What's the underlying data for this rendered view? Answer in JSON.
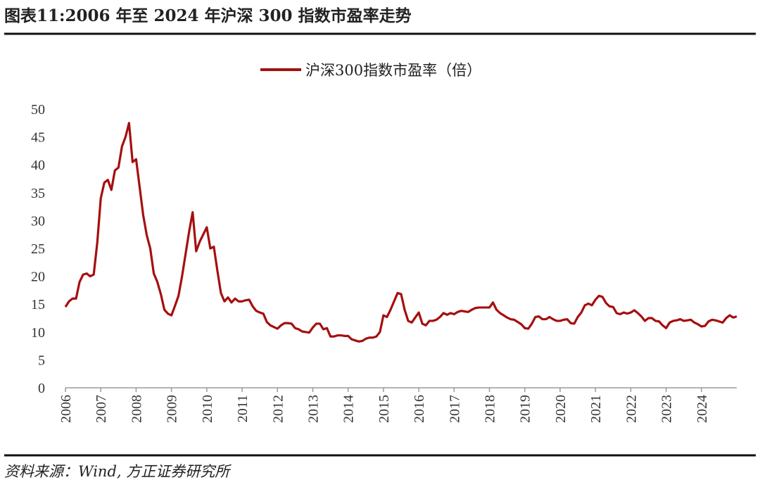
{
  "chart_data": {
    "type": "line",
    "title": "图表11:2006 年至 2024 年沪深 300 指数市盈率走势",
    "source": "资料来源：Wind, 方正证券研究所",
    "x": [
      2006,
      2006.1,
      2006.2,
      2006.3,
      2006.4,
      2006.5,
      2006.6,
      2006.7,
      2006.8,
      2006.9,
      2007,
      2007.1,
      2007.2,
      2007.3,
      2007.4,
      2007.5,
      2007.6,
      2007.7,
      2007.8,
      2007.9,
      2008,
      2008.1,
      2008.2,
      2008.3,
      2008.4,
      2008.5,
      2008.6,
      2008.7,
      2008.8,
      2008.9,
      2009,
      2009.1,
      2009.2,
      2009.3,
      2009.4,
      2009.5,
      2009.6,
      2009.7,
      2009.8,
      2009.9,
      2010,
      2010.1,
      2010.2,
      2010.3,
      2010.4,
      2010.5,
      2010.6,
      2010.7,
      2010.8,
      2010.9,
      2011,
      2011.1,
      2011.2,
      2011.3,
      2011.4,
      2011.5,
      2011.6,
      2011.7,
      2011.8,
      2011.9,
      2012,
      2012.1,
      2012.2,
      2012.3,
      2012.4,
      2012.5,
      2012.6,
      2012.7,
      2012.8,
      2012.9,
      2013,
      2013.1,
      2013.2,
      2013.3,
      2013.4,
      2013.5,
      2013.6,
      2013.7,
      2013.8,
      2013.9,
      2014,
      2014.1,
      2014.2,
      2014.3,
      2014.4,
      2014.5,
      2014.6,
      2014.7,
      2014.8,
      2014.9,
      2015,
      2015.1,
      2015.2,
      2015.3,
      2015.4,
      2015.5,
      2015.6,
      2015.7,
      2015.8,
      2015.9,
      2016,
      2016.1,
      2016.2,
      2016.3,
      2016.4,
      2016.5,
      2016.6,
      2016.7,
      2016.8,
      2016.9,
      2017,
      2017.1,
      2017.2,
      2017.3,
      2017.4,
      2017.5,
      2017.6,
      2017.7,
      2017.8,
      2017.9,
      2018,
      2018.1,
      2018.2,
      2018.3,
      2018.4,
      2018.5,
      2018.6,
      2018.7,
      2018.8,
      2018.9,
      2019,
      2019.1,
      2019.2,
      2019.3,
      2019.4,
      2019.5,
      2019.6,
      2019.7,
      2019.8,
      2019.9,
      2020,
      2020.1,
      2020.2,
      2020.3,
      2020.4,
      2020.5,
      2020.6,
      2020.7,
      2020.8,
      2020.9,
      2021,
      2021.1,
      2021.2,
      2021.3,
      2021.4,
      2021.5,
      2021.6,
      2021.7,
      2021.8,
      2021.9,
      2022,
      2022.1,
      2022.2,
      2022.3,
      2022.4,
      2022.5,
      2022.6,
      2022.7,
      2022.8,
      2022.9,
      2023,
      2023.1,
      2023.2,
      2023.3,
      2023.4,
      2023.5,
      2023.6,
      2023.7,
      2023.8,
      2023.9,
      2024,
      2024.1,
      2024.2,
      2024.3,
      2024.4,
      2024.5,
      2024.6,
      2024.7,
      2024.8,
      2024.9,
      2025
    ],
    "series": [
      {
        "name": "沪深300指数市盈率（倍）",
        "color": "#a50f0f",
        "values": [
          14.5,
          15.5,
          16,
          16,
          19,
          20.3,
          20.5,
          20,
          20.3,
          26,
          34,
          36.8,
          37.3,
          35.5,
          39,
          39.5,
          43.3,
          45,
          47.5,
          40.5,
          41,
          36,
          31,
          27.4,
          25,
          20.5,
          19,
          16.8,
          14,
          13.3,
          13,
          14.7,
          16.5,
          20,
          24,
          28,
          31.5,
          24.5,
          26.2,
          27.5,
          28.8,
          25,
          25.3,
          21,
          17,
          15.5,
          16.2,
          15.3,
          16,
          15.5,
          15.5,
          15.7,
          15.8,
          14.6,
          13.8,
          13.5,
          13.3,
          11.8,
          11.2,
          10.9,
          10.6,
          11.2,
          11.6,
          11.6,
          11.5,
          10.7,
          10.5,
          10.1,
          10,
          9.9,
          10.8,
          11.5,
          11.5,
          10.5,
          10.7,
          9.2,
          9.2,
          9.4,
          9.4,
          9.3,
          9.3,
          8.7,
          8.5,
          8.3,
          8.4,
          8.8,
          9,
          9,
          9.2,
          10,
          13,
          12.7,
          14,
          15.5,
          17,
          16.8,
          14,
          12,
          11.7,
          12.6,
          13.5,
          11.5,
          11.2,
          12,
          12,
          12.2,
          12.7,
          13.4,
          13.1,
          13.4,
          13.2,
          13.6,
          13.8,
          13.7,
          13.6,
          14,
          14.3,
          14.4,
          14.4,
          14.4,
          14.4,
          15.3,
          14,
          13.4,
          13,
          12.6,
          12.3,
          12.2,
          11.8,
          11.4,
          10.7,
          10.6,
          11.5,
          12.7,
          12.8,
          12.3,
          12.3,
          12.7,
          12.3,
          12,
          12,
          12.2,
          12.3,
          11.6,
          11.5,
          12.7,
          13.5,
          14.8,
          15.1,
          14.8,
          15.8,
          16.5,
          16.3,
          15.2,
          14.6,
          14.5,
          13.4,
          13.2,
          13.5,
          13.3,
          13.5,
          13.9,
          13.4,
          12.8,
          12,
          12.5,
          12.5,
          12,
          11.9,
          11.2,
          10.7,
          11.7,
          12,
          12.1,
          12.3,
          12,
          12.1,
          12.2,
          11.7,
          11.4,
          11,
          11.1,
          11.9,
          12.2,
          12.1,
          11.9,
          11.7,
          12.5,
          13,
          12.6,
          12.8
        ]
      }
    ],
    "xlim": [
      2006,
      2025
    ],
    "xticks": [
      2006,
      2007,
      2008,
      2009,
      2010,
      2011,
      2012,
      2013,
      2014,
      2015,
      2016,
      2017,
      2018,
      2019,
      2020,
      2021,
      2022,
      2023,
      2024
    ],
    "ylim": [
      0,
      50
    ],
    "yticks": [
      0,
      5,
      10,
      15,
      20,
      25,
      30,
      35,
      40,
      45,
      50
    ],
    "grid": false,
    "legend": "top"
  }
}
